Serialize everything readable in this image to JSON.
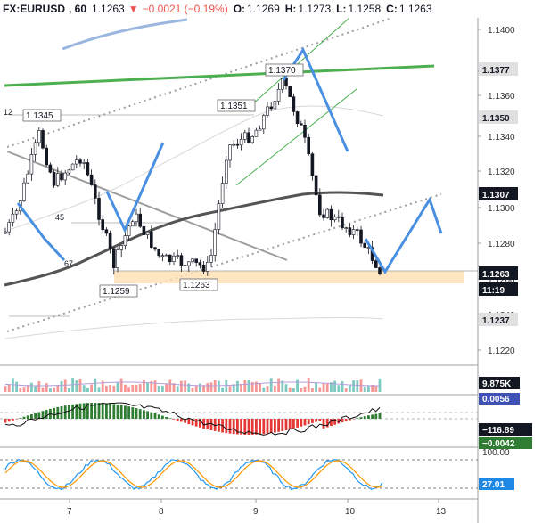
{
  "header": {
    "symbol": "FX:EURUSD",
    "interval": ", 60",
    "price": "1.1263",
    "change_arrow": "▼",
    "change": "−0.0021 (−0.19%)",
    "open_key": "O:",
    "open": "1.1269",
    "high_key": "H:",
    "high": "1.1273",
    "low_key": "L:",
    "low": "1.1258",
    "close_key": "C:",
    "close": "1.1263"
  },
  "price_axis": {
    "ticks": [
      "1.1400",
      "1.1380",
      "1.1360",
      "1.1340",
      "1.1320",
      "1.1300",
      "1.1280",
      "1.1260",
      "1.1240",
      "1.1220"
    ],
    "tags": [
      {
        "text": "1.1377",
        "bg": "#e0e0e0",
        "fg": "#131722"
      },
      {
        "text": "1.1350",
        "bg": "#e0e0e0",
        "fg": "#131722"
      },
      {
        "text": "1.1307",
        "bg": "#131722",
        "fg": "#ffffff"
      },
      {
        "text": "1.1263",
        "bg": "#131722",
        "fg": "#ffffff"
      },
      {
        "text": "11:19",
        "bg": "#131722",
        "fg": "#ffffff"
      },
      {
        "text": "1.1237",
        "bg": "#e0e0e0",
        "fg": "#131722"
      }
    ]
  },
  "chart_labels": {
    "high_1345": "1.1345",
    "high_1351": "1.1351",
    "high_1370": "1.1370",
    "low_1259": "1.1259",
    "low_1263": "1.1263",
    "period_12": "12",
    "period_45": "45",
    "period_67": "67"
  },
  "volume_pane": {
    "tag": "9.875K",
    "tag2": "0.0056"
  },
  "macd_pane": {
    "tag1": "−116.89",
    "tag2": "−0.0042"
  },
  "stoch_pane": {
    "tag1": "100.00",
    "tag2": "27.01"
  },
  "time_axis": {
    "labels": [
      "7",
      "8",
      "9",
      "10",
      "13"
    ]
  },
  "colors": {
    "bull": "#26a69a",
    "bear": "#ef5350",
    "blue_sketch": "#4a90e2",
    "green_line": "#4caf50"
  }
}
